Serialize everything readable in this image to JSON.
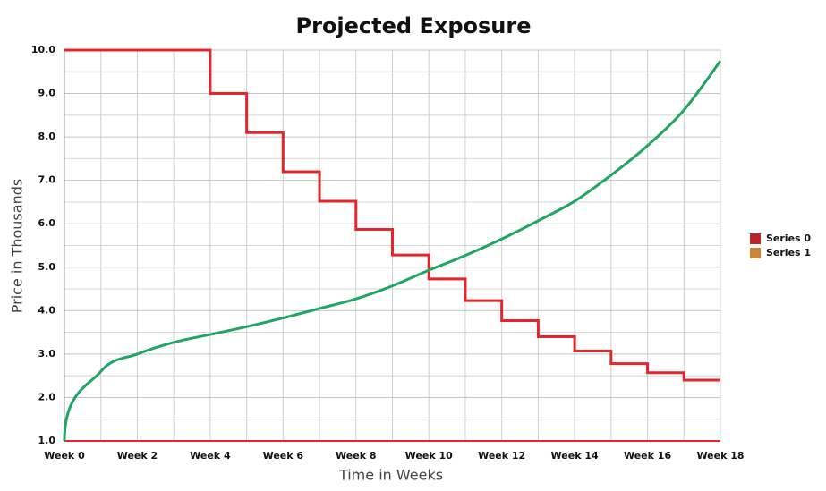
{
  "chart_data": {
    "type": "line",
    "title": "Projected Exposure",
    "x_label": "Time in Weeks",
    "y_label": "Price in Thousands",
    "categories": [
      "Week 0",
      null,
      "Week 2",
      null,
      "Week 4",
      null,
      "Week 6",
      null,
      "Week 8",
      null,
      "Week 10",
      null,
      "Week 12",
      null,
      "Week 14",
      null,
      "Week 16",
      null,
      "Week 18"
    ],
    "series": [
      {
        "name": "Series 0",
        "color": "#e3262b",
        "swatch_color": "#b8262b",
        "step": true,
        "values": [
          10.0,
          10.0,
          10.0,
          10.0,
          9.0,
          8.1,
          7.2,
          6.52,
          5.87,
          5.28,
          4.73,
          4.23,
          3.77,
          3.4,
          3.07,
          2.78,
          2.57,
          2.4,
          2.4
        ]
      },
      {
        "name": "Series 1",
        "color": "#1fa564",
        "swatch_color": "#c98436",
        "step": false,
        "values": [
          1.0,
          2.6,
          3.0,
          3.27,
          3.45,
          3.63,
          3.83,
          4.05,
          4.27,
          4.57,
          4.93,
          5.27,
          5.65,
          6.07,
          6.52,
          7.12,
          7.8,
          8.62,
          9.75
        ]
      }
    ],
    "ylim": [
      1.0,
      10.0
    ],
    "yticks": [
      {
        "value": 1,
        "label": "1.0"
      },
      {
        "value": 2,
        "label": "2.0"
      },
      {
        "value": 3,
        "label": "3.0"
      },
      {
        "value": 4,
        "label": "4.0"
      },
      {
        "value": 5,
        "label": "5.0"
      },
      {
        "value": 6,
        "label": "6.0"
      },
      {
        "value": 7,
        "label": "7.0"
      },
      {
        "value": 8,
        "label": "8.0"
      },
      {
        "value": 9,
        "label": "9.0"
      },
      {
        "value": 10,
        "label": "10.0"
      }
    ],
    "yminor": [
      1.5,
      2.5,
      3.5,
      4.5,
      5.5,
      6.5,
      7.5,
      8.5,
      9.5
    ],
    "grid": true,
    "axis_color": "#e3262b",
    "legend": "right"
  }
}
